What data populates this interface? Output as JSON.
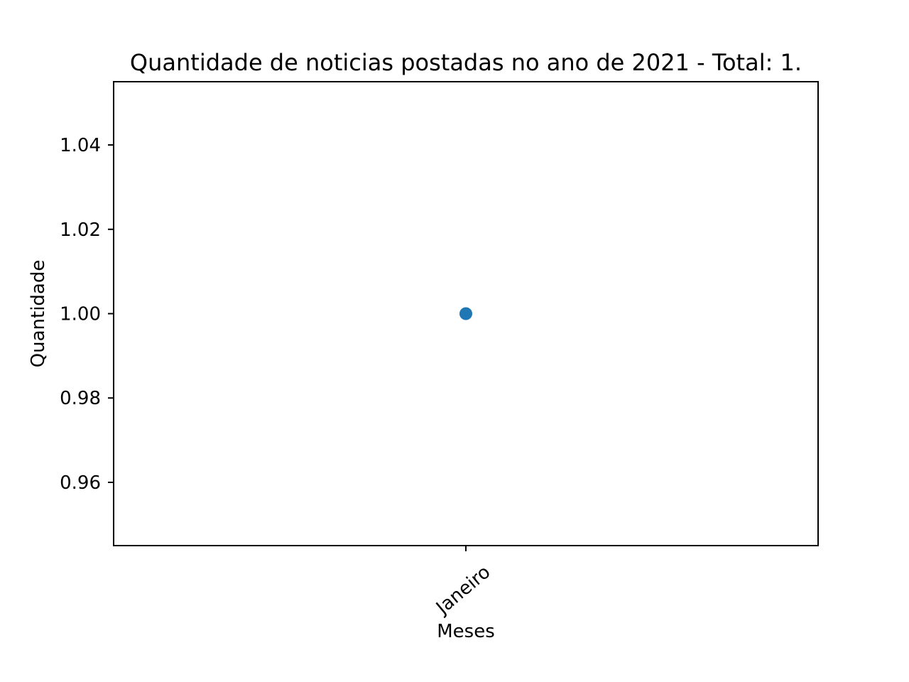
{
  "chart_data": {
    "type": "scatter",
    "title": "Quantidade de noticias postadas no ano de 2021 - Total: 1.",
    "xlabel": "Meses",
    "ylabel": "Quantidade",
    "categories": [
      "Janeiro"
    ],
    "series": [
      {
        "values": [
          1.0
        ]
      }
    ],
    "ylim": [
      0.945,
      1.055
    ],
    "yticks": [
      "0.96",
      "0.98",
      "1.00",
      "1.02",
      "1.04"
    ],
    "ytick_values": [
      0.96,
      0.98,
      1.0,
      1.02,
      1.04
    ],
    "xtick_rotation": 40,
    "grid": false,
    "colors": {
      "series": "#1f77b4",
      "axes": "#000000",
      "background": "#ffffff"
    }
  }
}
